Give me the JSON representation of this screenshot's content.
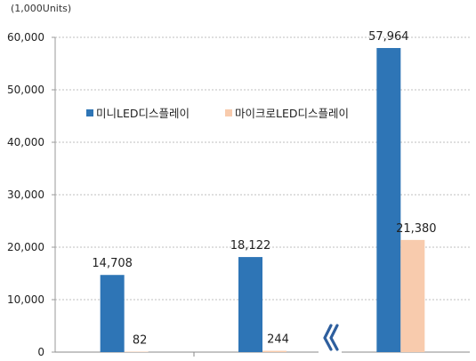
{
  "chart_data": {
    "type": "bar",
    "unit_label": "(1,000Units)",
    "ylim": [
      0,
      60000
    ],
    "y_ticks": [
      "0",
      "10,000",
      "20,000",
      "30,000",
      "40,000",
      "50,000",
      "60,000"
    ],
    "y_tick_values": [
      0,
      10000,
      20000,
      30000,
      40000,
      50000,
      60000
    ],
    "grid": true,
    "legend_position": "upper-left-inside",
    "categories": [
      "",
      "",
      ""
    ],
    "axis_break_after_category": 1,
    "series": [
      {
        "name": "미니LED디스플레이",
        "color": "#2E75B6",
        "values": [
          14708,
          18122,
          57964
        ],
        "labels": [
          "14,708",
          "18,122",
          "57,964"
        ]
      },
      {
        "name": "마이크로LED디스플레이",
        "color": "#F8CBAD",
        "values": [
          82,
          244,
          21380
        ],
        "labels": [
          "82",
          "244",
          "21,380"
        ]
      }
    ]
  }
}
